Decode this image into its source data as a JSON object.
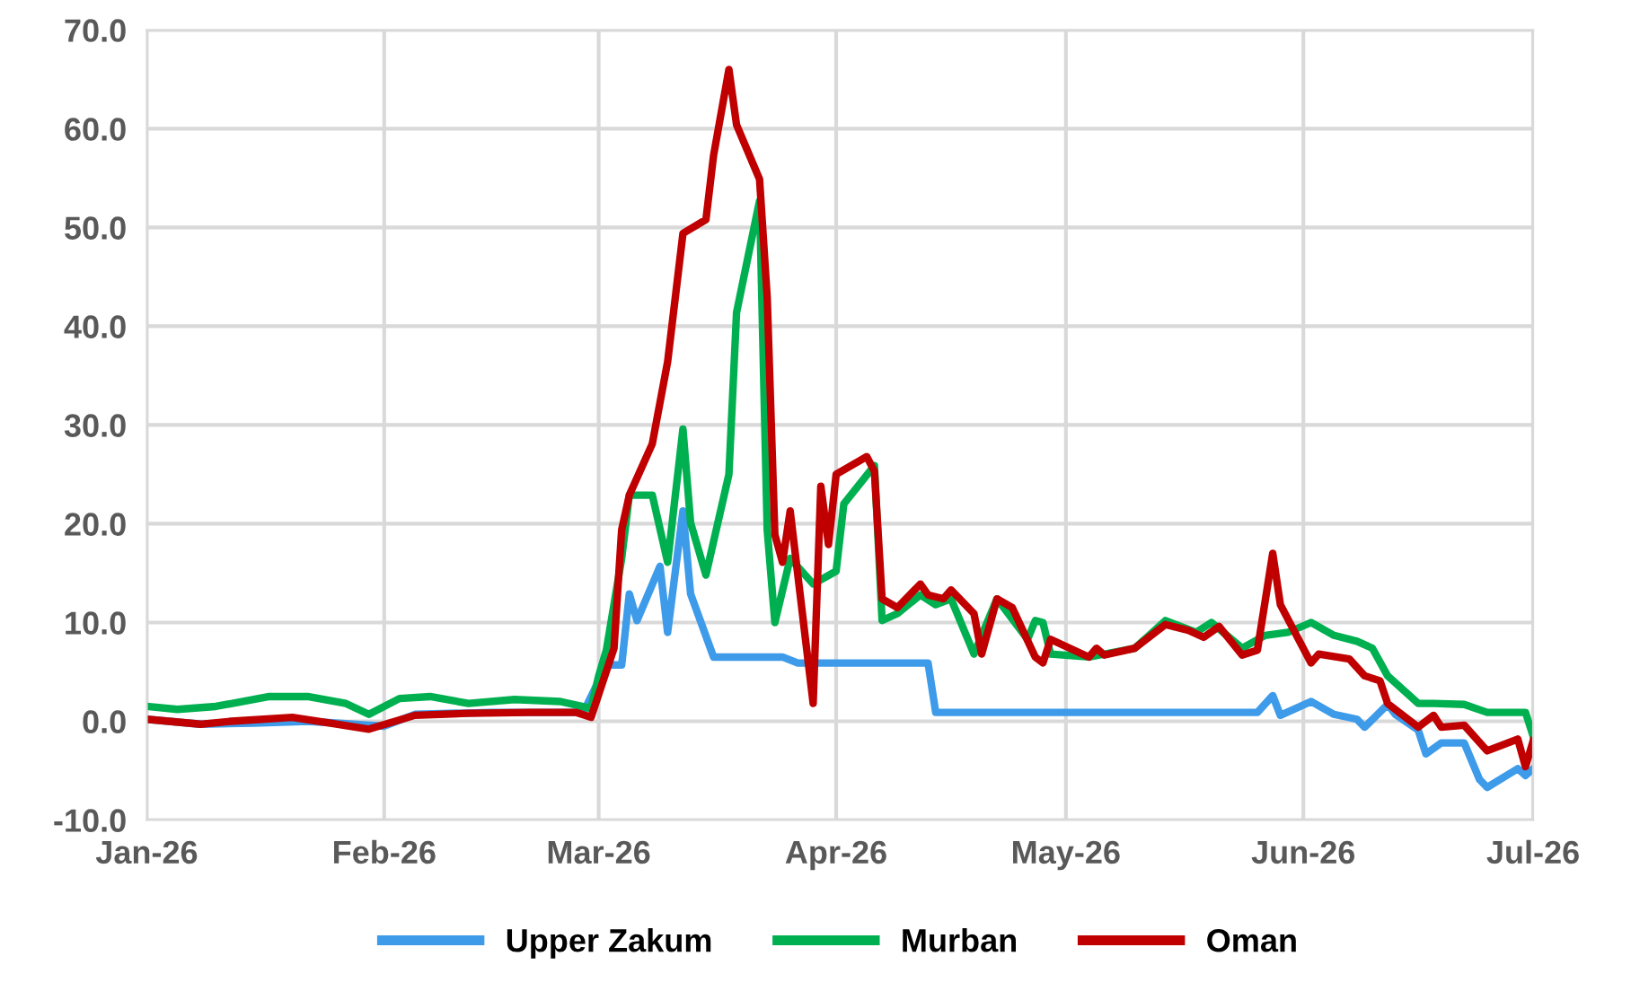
{
  "chart_data": {
    "type": "line",
    "xlim": [
      "2026-01-01",
      "2026-07-01"
    ],
    "xticks": [
      {
        "value": "2026-01-01",
        "label": "Jan-26"
      },
      {
        "value": "2026-02-01",
        "label": "Feb-26"
      },
      {
        "value": "2026-03-01",
        "label": "Mar-26"
      },
      {
        "value": "2026-04-01",
        "label": "Apr-26"
      },
      {
        "value": "2026-05-01",
        "label": "May-26"
      },
      {
        "value": "2026-06-01",
        "label": "Jun-26"
      },
      {
        "value": "2026-07-01",
        "label": "Jul-26"
      }
    ],
    "ylim": [
      -10,
      70
    ],
    "yticks": [
      {
        "value": -10,
        "label": "-10.0"
      },
      {
        "value": 0,
        "label": "0.0"
      },
      {
        "value": 10,
        "label": "10.0"
      },
      {
        "value": 20,
        "label": "20.0"
      },
      {
        "value": 30,
        "label": "30.0"
      },
      {
        "value": 40,
        "label": "40.0"
      },
      {
        "value": 50,
        "label": "50.0"
      },
      {
        "value": 60,
        "label": "60.0"
      },
      {
        "value": 70,
        "label": "70.0"
      }
    ],
    "grid": true,
    "legend": "bottom",
    "marker": "none",
    "line_style": "solid",
    "series": [
      {
        "name": "Upper Zakum",
        "color": "#3d9be9",
        "x": [
          "2026-01-01",
          "2026-01-08",
          "2026-01-15",
          "2026-01-22",
          "2026-02-01",
          "2026-02-05",
          "2026-02-15",
          "2026-02-27",
          "2026-03-02",
          "2026-03-04",
          "2026-03-05",
          "2026-03-06",
          "2026-03-09",
          "2026-03-10",
          "2026-03-12",
          "2026-03-13",
          "2026-03-16",
          "2026-03-25",
          "2026-03-27",
          "2026-04-13",
          "2026-04-14",
          "2026-05-26",
          "2026-05-28",
          "2026-05-29",
          "2026-06-02",
          "2026-06-05",
          "2026-06-08",
          "2026-06-09",
          "2026-06-12",
          "2026-06-13",
          "2026-06-16",
          "2026-06-17",
          "2026-06-19",
          "2026-06-22",
          "2026-06-24",
          "2026-06-25",
          "2026-06-29",
          "2026-06-30",
          "2026-07-01"
        ],
        "values": [
          0.2,
          -0.3,
          -0.2,
          0.0,
          -0.5,
          0.7,
          0.9,
          0.9,
          5.7,
          5.7,
          12.9,
          10.2,
          15.7,
          9.0,
          21.3,
          12.9,
          6.5,
          6.5,
          5.9,
          5.9,
          0.9,
          0.9,
          2.6,
          0.6,
          2.0,
          0.7,
          0.2,
          -0.6,
          1.7,
          0.7,
          -0.9,
          -3.3,
          -2.2,
          -2.2,
          -5.9,
          -6.7,
          -4.8,
          -5.5,
          -4.8
        ]
      },
      {
        "name": "Murban",
        "color": "#00b050",
        "x": [
          "2026-01-01",
          "2026-01-05",
          "2026-01-10",
          "2026-01-17",
          "2026-01-22",
          "2026-01-27",
          "2026-01-30",
          "2026-02-03",
          "2026-02-07",
          "2026-02-12",
          "2026-02-18",
          "2026-02-24",
          "2026-02-28",
          "2026-03-01",
          "2026-03-02",
          "2026-03-04",
          "2026-03-05",
          "2026-03-08",
          "2026-03-10",
          "2026-03-12",
          "2026-03-13",
          "2026-03-15",
          "2026-03-18",
          "2026-03-19",
          "2026-03-22",
          "2026-03-23",
          "2026-03-24",
          "2026-03-26",
          "2026-03-29",
          "2026-04-01",
          "2026-04-02",
          "2026-04-06",
          "2026-04-07",
          "2026-04-09",
          "2026-04-12",
          "2026-04-14",
          "2026-04-16",
          "2026-04-19",
          "2026-04-22",
          "2026-04-26",
          "2026-04-27",
          "2026-04-28",
          "2026-04-29",
          "2026-05-04",
          "2026-05-10",
          "2026-05-14",
          "2026-05-18",
          "2026-05-20",
          "2026-05-24",
          "2026-05-27",
          "2026-05-30",
          "2026-06-02",
          "2026-06-05",
          "2026-06-08",
          "2026-06-10",
          "2026-06-12",
          "2026-06-16",
          "2026-06-18",
          "2026-06-22",
          "2026-06-25",
          "2026-06-27",
          "2026-06-30",
          "2026-07-01"
        ],
        "values": [
          1.5,
          1.2,
          1.5,
          2.5,
          2.5,
          1.8,
          0.7,
          2.3,
          2.5,
          1.8,
          2.2,
          2.0,
          1.3,
          4.6,
          7.2,
          16.5,
          22.9,
          22.9,
          16.1,
          29.6,
          20.1,
          14.8,
          25.0,
          41.4,
          52.7,
          19.4,
          10.0,
          16.5,
          13.9,
          15.2,
          22.0,
          25.9,
          10.2,
          10.9,
          12.8,
          11.8,
          12.4,
          6.8,
          12.4,
          8.3,
          10.2,
          10.0,
          6.8,
          6.5,
          7.4,
          10.2,
          9.0,
          10.0,
          7.4,
          8.7,
          9.0,
          10.0,
          8.7,
          8.1,
          7.4,
          4.6,
          1.8,
          1.8,
          1.7,
          0.9,
          0.9,
          0.9,
          -1.5
        ]
      },
      {
        "name": "Oman",
        "color": "#c00000",
        "x": [
          "2026-01-01",
          "2026-01-08",
          "2026-01-12",
          "2026-01-20",
          "2026-01-25",
          "2026-01-30",
          "2026-02-05",
          "2026-02-12",
          "2026-02-20",
          "2026-02-26",
          "2026-02-28",
          "2026-03-03",
          "2026-03-04",
          "2026-03-05",
          "2026-03-08",
          "2026-03-10",
          "2026-03-12",
          "2026-03-15",
          "2026-03-16",
          "2026-03-18",
          "2026-03-19",
          "2026-03-22",
          "2026-03-23",
          "2026-03-24",
          "2026-03-25",
          "2026-03-26",
          "2026-03-29",
          "2026-03-30",
          "2026-03-31",
          "2026-04-01",
          "2026-04-05",
          "2026-04-06",
          "2026-04-07",
          "2026-04-09",
          "2026-04-12",
          "2026-04-13",
          "2026-04-15",
          "2026-04-16",
          "2026-04-19",
          "2026-04-20",
          "2026-04-22",
          "2026-04-24",
          "2026-04-27",
          "2026-04-28",
          "2026-04-29",
          "2026-05-04",
          "2026-05-05",
          "2026-05-06",
          "2026-05-10",
          "2026-05-14",
          "2026-05-17",
          "2026-05-19",
          "2026-05-21",
          "2026-05-24",
          "2026-05-26",
          "2026-05-28",
          "2026-05-29",
          "2026-06-02",
          "2026-06-03",
          "2026-06-07",
          "2026-06-09",
          "2026-06-11",
          "2026-06-12",
          "2026-06-16",
          "2026-06-18",
          "2026-06-19",
          "2026-06-22",
          "2026-06-25",
          "2026-06-29",
          "2026-06-30",
          "2026-07-01"
        ],
        "values": [
          0.2,
          -0.3,
          0.0,
          0.4,
          -0.2,
          -0.8,
          0.6,
          0.8,
          0.9,
          0.9,
          0.4,
          7.4,
          19.4,
          22.9,
          28.1,
          36.4,
          49.4,
          50.8,
          57.3,
          66.0,
          60.4,
          54.9,
          42.9,
          18.9,
          16.1,
          21.3,
          1.8,
          23.8,
          17.9,
          25.0,
          26.8,
          25.3,
          12.4,
          11.5,
          13.9,
          12.8,
          12.4,
          13.3,
          10.9,
          6.8,
          12.4,
          11.5,
          6.5,
          5.9,
          8.3,
          6.5,
          7.4,
          6.7,
          7.4,
          9.8,
          9.2,
          8.5,
          9.6,
          6.7,
          7.2,
          17.0,
          11.8,
          5.9,
          6.8,
          6.3,
          4.6,
          4.1,
          1.8,
          -0.6,
          0.6,
          -0.6,
          -0.4,
          -3.0,
          -1.8,
          -4.6,
          -2.0
        ]
      }
    ]
  }
}
